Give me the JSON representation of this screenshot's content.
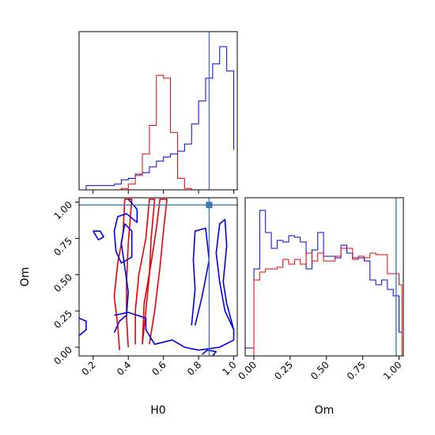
{
  "chart_data": {
    "type": "corner",
    "parameters": [
      "H0",
      "Om"
    ],
    "xlabel_H0": "H0",
    "ylabel_Om": "Om",
    "xlabel_Om": "Om",
    "ticks": {
      "H0": [
        "0.2",
        "0.4",
        "0.6",
        "0.8",
        "1.0"
      ],
      "Om": [
        "0.00",
        "0.25",
        "0.50",
        "0.75",
        "1.00"
      ]
    },
    "ranges": {
      "H0": [
        0.12,
        1.02
      ],
      "Om": [
        -0.06,
        1.03
      ]
    },
    "truth": {
      "H0": 0.86,
      "Om": 0.98,
      "color": "#3a77b0"
    },
    "colors": {
      "blue": "#0000ee",
      "red": "#ee0000"
    },
    "hist_H0": {
      "bin_edges": [
        0.12,
        0.16,
        0.2,
        0.24,
        0.28,
        0.32,
        0.36,
        0.4,
        0.44,
        0.48,
        0.52,
        0.56,
        0.6,
        0.64,
        0.68,
        0.72,
        0.76,
        0.8,
        0.84,
        0.88,
        0.92,
        0.96,
        1.0
      ],
      "series": [
        {
          "color": "blue",
          "counts": [
            0,
            0.03,
            0.03,
            0.03,
            0.03,
            0.04,
            0.07,
            0.08,
            0.11,
            0.12,
            0.16,
            0.2,
            0.23,
            0.25,
            0.27,
            0.32,
            0.46,
            0.62,
            0.78,
            0.88,
            1.0,
            0.83,
            0.28
          ]
        },
        {
          "color": "red",
          "counts": [
            0,
            0,
            0,
            0,
            0,
            0,
            0.01,
            0.04,
            0.1,
            0.25,
            0.45,
            0.8,
            0.78,
            0.4,
            0.08,
            0.01,
            0,
            0,
            0,
            0,
            0,
            0,
            0
          ]
        }
      ]
    },
    "hist_Om": {
      "bin_edges": [
        -0.06,
        0.0,
        0.04,
        0.08,
        0.12,
        0.16,
        0.2,
        0.24,
        0.28,
        0.32,
        0.36,
        0.4,
        0.44,
        0.48,
        0.52,
        0.56,
        0.6,
        0.64,
        0.68,
        0.72,
        0.76,
        0.8,
        0.84,
        0.88,
        0.92,
        0.96,
        1.0,
        1.02
      ],
      "series": [
        {
          "color": "blue",
          "counts": [
            0.05,
            0.55,
            0.92,
            0.78,
            0.68,
            0.73,
            0.72,
            0.76,
            0.75,
            0.72,
            0.55,
            0.67,
            0.78,
            0.63,
            0.63,
            0.62,
            0.7,
            0.65,
            0.62,
            0.62,
            0.6,
            0.48,
            0.45,
            0.48,
            0.42,
            0.38,
            0.15,
            0.15
          ]
        },
        {
          "color": "red",
          "counts": [
            0,
            0.48,
            0.53,
            0.55,
            0.55,
            0.56,
            0.61,
            0.58,
            0.61,
            0.58,
            0.65,
            0.6,
            0.65,
            0.6,
            0.6,
            0.63,
            0.68,
            0.68,
            0.61,
            0.63,
            0.62,
            0.65,
            0.64,
            0.64,
            0.52,
            0.52,
            0.45,
            0
          ]
        }
      ]
    },
    "contours": [
      {
        "color": "red",
        "points": [
          [
            0.35,
            -0.02
          ],
          [
            0.34,
            0.15
          ],
          [
            0.32,
            0.35
          ],
          [
            0.34,
            0.58
          ],
          [
            0.37,
            0.78
          ],
          [
            0.38,
            1.02
          ],
          [
            0.42,
            1.02
          ],
          [
            0.4,
            0.72
          ],
          [
            0.39,
            0.45
          ],
          [
            0.39,
            0.2
          ],
          [
            0.4,
            0.0
          ]
        ]
      },
      {
        "color": "red",
        "points": [
          [
            0.44,
            0.02
          ],
          [
            0.44,
            0.25
          ],
          [
            0.46,
            0.5
          ],
          [
            0.5,
            0.75
          ],
          [
            0.52,
            1.02
          ],
          [
            0.55,
            1.02
          ],
          [
            0.53,
            0.75
          ],
          [
            0.52,
            0.5
          ],
          [
            0.5,
            0.25
          ],
          [
            0.48,
            0.02
          ]
        ]
      },
      {
        "color": "red",
        "points": [
          [
            0.48,
            0.02
          ],
          [
            0.49,
            0.3
          ],
          [
            0.53,
            0.58
          ],
          [
            0.56,
            0.82
          ],
          [
            0.58,
            1.02
          ],
          [
            0.62,
            1.02
          ],
          [
            0.6,
            0.8
          ],
          [
            0.58,
            0.55
          ],
          [
            0.55,
            0.25
          ],
          [
            0.52,
            0.02
          ]
        ]
      },
      {
        "color": "blue",
        "points": [
          [
            0.32,
            0.22
          ],
          [
            0.4,
            0.24
          ],
          [
            0.5,
            0.2
          ],
          [
            0.5,
            0.12
          ],
          [
            0.55,
            0.02
          ],
          [
            0.65,
            0.05
          ],
          [
            0.72,
            0.0
          ],
          [
            0.8,
            -0.02
          ],
          [
            0.92,
            0.0
          ],
          [
            1.0,
            0.05
          ],
          [
            1.0,
            0.12
          ],
          [
            0.95,
            0.25
          ],
          [
            0.92,
            0.45
          ],
          [
            0.9,
            0.65
          ],
          [
            0.92,
            0.85
          ],
          [
            0.95,
            0.88
          ],
          [
            0.96,
            0.7
          ],
          [
            0.94,
            0.45
          ],
          [
            0.96,
            0.3
          ],
          [
            1.0,
            0.12
          ]
        ]
      },
      {
        "color": "blue",
        "points": [
          [
            0.32,
            0.1
          ],
          [
            0.35,
            0.18
          ],
          [
            0.39,
            0.22
          ],
          [
            0.4,
            0.38
          ],
          [
            0.38,
            0.55
          ],
          [
            0.36,
            0.72
          ],
          [
            0.38,
            0.85
          ],
          [
            0.42,
            0.8
          ],
          [
            0.42,
            0.62
          ],
          [
            0.36,
            0.58
          ],
          [
            0.33,
            0.66
          ],
          [
            0.32,
            0.8
          ],
          [
            0.34,
            0.9
          ],
          [
            0.39,
            0.92
          ],
          [
            0.45,
            0.86
          ],
          [
            0.45,
            0.95
          ],
          [
            0.4,
            1.02
          ]
        ]
      },
      {
        "color": "blue",
        "points": [
          [
            0.76,
            0.15
          ],
          [
            0.78,
            0.4
          ],
          [
            0.77,
            0.6
          ],
          [
            0.78,
            0.8
          ],
          [
            0.84,
            0.82
          ],
          [
            0.86,
            0.6
          ],
          [
            0.82,
            0.35
          ],
          [
            0.78,
            0.15
          ]
        ]
      },
      {
        "color": "blue",
        "points": [
          [
            0.82,
            -0.05
          ],
          [
            0.85,
            -0.02
          ],
          [
            0.9,
            -0.03
          ],
          [
            0.88,
            -0.06
          ]
        ]
      },
      {
        "color": "blue",
        "points": [
          [
            0.2,
            0.8
          ],
          [
            0.24,
            0.8
          ],
          [
            0.26,
            0.76
          ],
          [
            0.23,
            0.74
          ],
          [
            0.2,
            0.8
          ]
        ]
      },
      {
        "color": "blue",
        "points": [
          [
            0.12,
            0.08
          ],
          [
            0.16,
            0.12
          ],
          [
            0.16,
            0.18
          ],
          [
            0.12,
            0.2
          ]
        ]
      }
    ]
  }
}
